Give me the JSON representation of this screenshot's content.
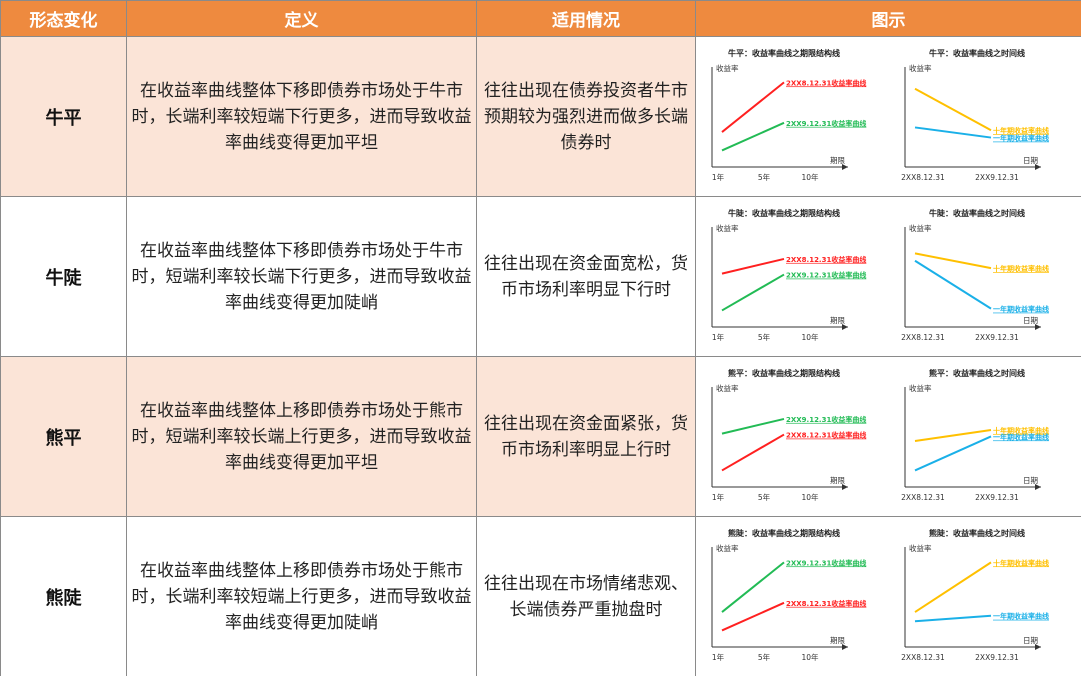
{
  "headers": [
    "形态变化",
    "定义",
    "适用情况",
    "图示"
  ],
  "colors": {
    "header_bg": "#ee8a3f",
    "row_peach": "#fbe4d7",
    "red": "#ff2020",
    "green": "#22bb55",
    "yellow": "#ffc000",
    "blue": "#1ab0e8"
  },
  "rows": [
    {
      "name": "牛平",
      "definition": "在收益率曲线整体下移即债券市场处于牛市时，长端利率较短端下行更多，进而导致收益率曲线变得更加平坦",
      "situation": "往往出现在债券投资者牛市预期较为强烈进而做多长端债券时",
      "figs": [
        {
          "title": "牛平：收益率曲线之期限结构线",
          "ylabel": "收益率",
          "xlabel": "期限",
          "ticks": [
            "1年",
            "5年",
            "10年"
          ],
          "lines": [
            {
              "color": "red",
              "label": "2XX8.12.31收益率曲线",
              "y1": 0.38,
              "y2": 0.92
            },
            {
              "color": "green",
              "label": "2XX9.12.31收益率曲线",
              "y1": 0.18,
              "y2": 0.48
            }
          ]
        },
        {
          "title": "牛平：收益率曲线之时间线",
          "ylabel": "收益率",
          "xlabel": "日期",
          "ticks": [
            "2XX8.12.31",
            "2XX9.12.31"
          ],
          "lines": [
            {
              "color": "yellow",
              "label": "十年期收益率曲线",
              "y1": 0.85,
              "y2": 0.4
            },
            {
              "color": "blue",
              "label": "一年期收益率曲线",
              "y1": 0.43,
              "y2": 0.32
            }
          ]
        }
      ]
    },
    {
      "name": "牛陡",
      "definition": "在收益率曲线整体下移即债券市场处于牛市时，短端利率较长端下行更多，进而导致收益率曲线变得更加陡峭",
      "situation": "往往出现在资金面宽松，货币市场利率明显下行时",
      "figs": [
        {
          "title": "牛陡：收益率曲线之期限结构线",
          "ylabel": "收益率",
          "xlabel": "期限",
          "ticks": [
            "1年",
            "5年",
            "10年"
          ],
          "lines": [
            {
              "color": "red",
              "label": "2XX8.12.31收益率曲线",
              "y1": 0.58,
              "y2": 0.74
            },
            {
              "color": "green",
              "label": "2XX9.12.31收益率曲线",
              "y1": 0.18,
              "y2": 0.57
            }
          ]
        },
        {
          "title": "牛陡：收益率曲线之时间线",
          "ylabel": "收益率",
          "xlabel": "日期",
          "ticks": [
            "2XX8.12.31",
            "2XX9.12.31"
          ],
          "lines": [
            {
              "color": "yellow",
              "label": "十年期收益率曲线",
              "y1": 0.8,
              "y2": 0.64
            },
            {
              "color": "blue",
              "label": "一年期收益率曲线",
              "y1": 0.72,
              "y2": 0.2
            }
          ]
        }
      ]
    },
    {
      "name": "熊平",
      "definition": "在收益率曲线整体上移即债券市场处于熊市时，短端利率较长端上行更多，进而导致收益率曲线变得更加平坦",
      "situation": "往往出现在资金面紧张，货币市场利率明显上行时",
      "figs": [
        {
          "title": "熊平：收益率曲线之期限结构线",
          "ylabel": "收益率",
          "xlabel": "期限",
          "ticks": [
            "1年",
            "5年",
            "10年"
          ],
          "lines": [
            {
              "color": "green",
              "label": "2XX9.12.31收益率曲线",
              "y1": 0.58,
              "y2": 0.74
            },
            {
              "color": "red",
              "label": "2XX8.12.31收益率曲线",
              "y1": 0.18,
              "y2": 0.57
            }
          ]
        },
        {
          "title": "熊平：收益率曲线之时间线",
          "ylabel": "收益率",
          "xlabel": "日期",
          "ticks": [
            "2XX8.12.31",
            "2XX9.12.31"
          ],
          "lines": [
            {
              "color": "yellow",
              "label": "十年期收益率曲线",
              "y1": 0.5,
              "y2": 0.62
            },
            {
              "color": "blue",
              "label": "一年期收益率曲线",
              "y1": 0.18,
              "y2": 0.55
            }
          ]
        }
      ]
    },
    {
      "name": "熊陡",
      "definition": "在收益率曲线整体上移即债券市场处于熊市时，长端利率较短端上行更多，进而导致收益率曲线变得更加陡峭",
      "situation": "往往出现在市场情绪悲观、长端债券严重抛盘时",
      "figs": [
        {
          "title": "熊陡：收益率曲线之期限结构线",
          "ylabel": "收益率",
          "xlabel": "期限",
          "ticks": [
            "1年",
            "5年",
            "10年"
          ],
          "lines": [
            {
              "color": "green",
              "label": "2XX9.12.31收益率曲线",
              "y1": 0.38,
              "y2": 0.92
            },
            {
              "color": "red",
              "label": "2XX8.12.31收益率曲线",
              "y1": 0.18,
              "y2": 0.48
            }
          ]
        },
        {
          "title": "熊陡：收益率曲线之时间线",
          "ylabel": "收益率",
          "xlabel": "日期",
          "ticks": [
            "2XX8.12.31",
            "2XX9.12.31"
          ],
          "lines": [
            {
              "color": "yellow",
              "label": "十年期收益率曲线",
              "y1": 0.38,
              "y2": 0.92
            },
            {
              "color": "blue",
              "label": "一年期收益率曲线",
              "y1": 0.28,
              "y2": 0.34
            }
          ]
        }
      ]
    }
  ]
}
